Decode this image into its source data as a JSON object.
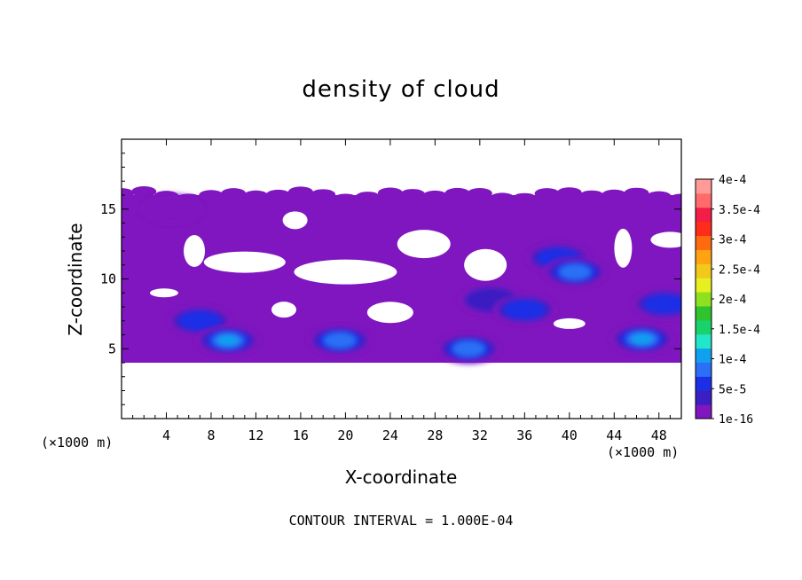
{
  "chart_data": {
    "type": "heatmap",
    "subtype": "filled-contour",
    "title": "density of cloud",
    "xlabel": "X-coordinate",
    "ylabel": "Z-coordinate",
    "x_unit": "(×1000 m)",
    "y_unit": "(×1000 m)",
    "xlim": [
      0,
      50
    ],
    "ylim": [
      0,
      20
    ],
    "x_ticks": [
      "4",
      "8",
      "12",
      "16",
      "20",
      "24",
      "28",
      "32",
      "36",
      "40",
      "44",
      "48"
    ],
    "y_ticks": [
      "5",
      "10",
      "15"
    ],
    "footnote": "CONTOUR INTERVAL = 1.000E-04",
    "colorbar": {
      "labels": [
        "1e-16",
        "5e-5",
        "1e-4",
        "1.5e-4",
        "2e-4",
        "2.5e-4",
        "3e-4",
        "3.5e-4",
        "4e-4"
      ],
      "colors": [
        "#7f16bf",
        "#3a1fc2",
        "#1c2fe6",
        "#2a6ff5",
        "#11a0f0",
        "#22e6c8",
        "#1ad26a",
        "#2fc42f",
        "#8fe01f",
        "#e6ef1f",
        "#f2c81a",
        "#ffa312",
        "#ff6a10",
        "#ff2b1b",
        "#f21e47",
        "#ff6b6b",
        "#ff9a96"
      ]
    },
    "cloud_layer_z": [
      4.0,
      16.0
    ],
    "cells": [
      {
        "x": 4.5,
        "z": 15.0,
        "level": 0
      },
      {
        "x": 33,
        "z": 8.5,
        "level": 1
      },
      {
        "x": 36,
        "z": 7.8,
        "level": 2
      },
      {
        "x": 39,
        "z": 11.5,
        "level": 2
      },
      {
        "x": 40.5,
        "z": 10.5,
        "level": 3
      },
      {
        "x": 7,
        "z": 7.0,
        "level": 2
      },
      {
        "x": 9.5,
        "z": 5.6,
        "level": 4
      },
      {
        "x": 19.5,
        "z": 5.6,
        "level": 3
      },
      {
        "x": 31,
        "z": 5.0,
        "level": 3
      },
      {
        "x": 46.5,
        "z": 5.7,
        "level": 4
      },
      {
        "x": 48.5,
        "z": 8.2,
        "level": 2
      }
    ]
  }
}
